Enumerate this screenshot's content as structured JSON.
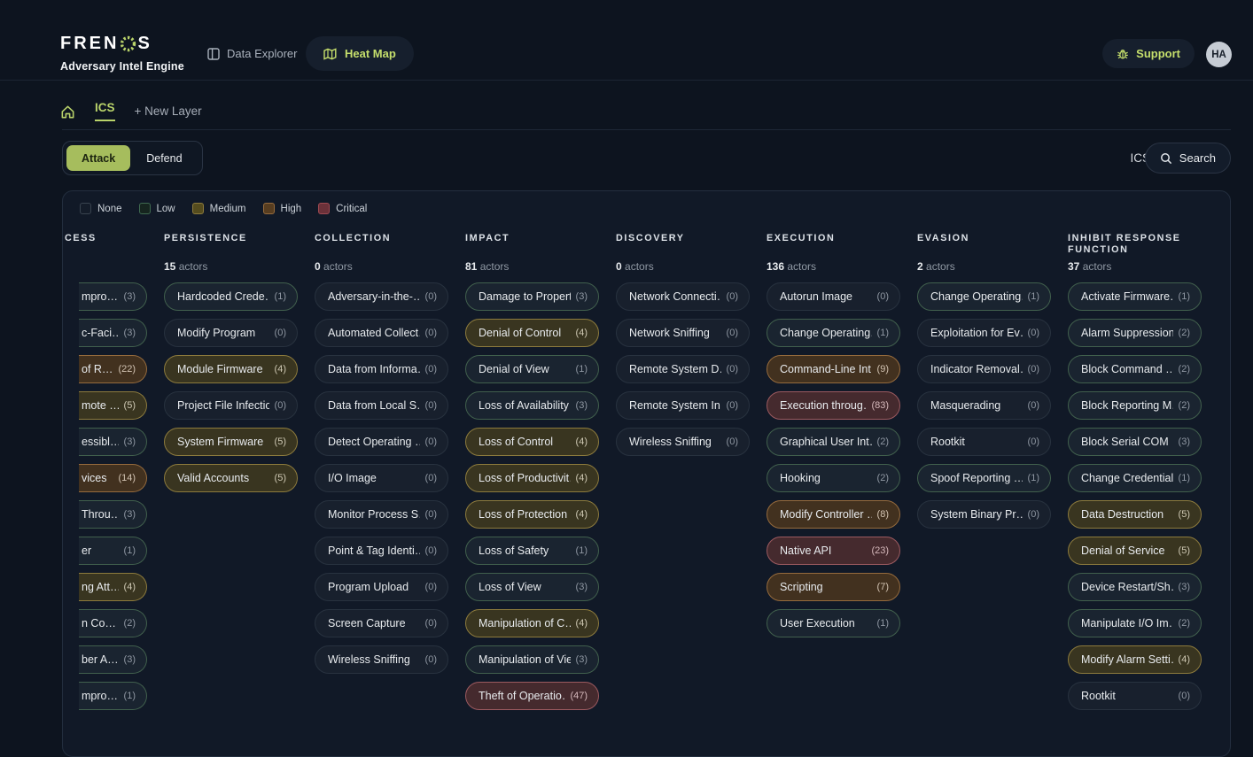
{
  "header": {
    "logo_prefix": "FREN",
    "logo_suffix": "S",
    "subtitle": "Adversary Intel Engine",
    "nav": {
      "data_explorer": "Data Explorer",
      "heat_map": "Heat Map"
    },
    "support_label": "Support",
    "avatar_initials": "HA"
  },
  "breadcrumb": {
    "current": "ICS",
    "new_layer": "+ New Layer"
  },
  "mode_toggle": {
    "attack": "Attack",
    "defend": "Defend"
  },
  "toolbar": {
    "context": "ICS",
    "search_label": "Search"
  },
  "accent": {
    "green": "#c6df6c",
    "brand": "#b9d36a",
    "attack_bg": "#a6bd5d",
    "attack_text": "#1c2410"
  },
  "severity_colors": {
    "none": {
      "bg": "#18202d",
      "border": "#28323f",
      "count": "#8f97a2"
    },
    "low": {
      "bg": "#1a2430",
      "border": "#41604d",
      "count": "#8f97a2"
    },
    "medium": {
      "bg": "#393520",
      "border": "#8d7b3d",
      "count": "#cfc9b4"
    },
    "high": {
      "bg": "#42311f",
      "border": "#966b3d",
      "count": "#d2c3b2"
    },
    "critical": {
      "bg": "#452a2e",
      "border": "#9c5a60",
      "count": "#d6b9bc"
    }
  },
  "legend": [
    {
      "label": "None",
      "level": "none",
      "swatch": {
        "bg": "#141c29",
        "border": "#39434f"
      }
    },
    {
      "label": "Low",
      "level": "low",
      "swatch": {
        "bg": "#16251f",
        "border": "#3f6a50"
      }
    },
    {
      "label": "Medium",
      "level": "medium",
      "swatch": {
        "bg": "#554c1e",
        "border": "#8d7b3d"
      }
    },
    {
      "label": "High",
      "level": "high",
      "swatch": {
        "bg": "#573d20",
        "border": "#966b3d"
      }
    },
    {
      "label": "Critical",
      "level": "critical",
      "swatch": {
        "bg": "#6b3139",
        "border": "#a04a52"
      }
    }
  ],
  "columns": [
    {
      "name": "CESS",
      "clipped": true,
      "actors_count": null,
      "actors_label": null,
      "techniques": [
        {
          "name": "mpro…",
          "count": "(3)",
          "severity": "low"
        },
        {
          "name": "c-Faci…",
          "count": "(3)",
          "severity": "low"
        },
        {
          "name": "of R…",
          "count": "(22)",
          "severity": "high"
        },
        {
          "name": "mote …",
          "count": "(5)",
          "severity": "medium"
        },
        {
          "name": "essibl…",
          "count": "(3)",
          "severity": "low"
        },
        {
          "name": "vices",
          "count": "(14)",
          "severity": "high"
        },
        {
          "name": "Throu…",
          "count": "(3)",
          "severity": "low"
        },
        {
          "name": "er",
          "count": "(1)",
          "severity": "low"
        },
        {
          "name": "ng Att…",
          "count": "(4)",
          "severity": "medium"
        },
        {
          "name": "n Co…",
          "count": "(2)",
          "severity": "low"
        },
        {
          "name": "ber A…",
          "count": "(3)",
          "severity": "low"
        },
        {
          "name": "mpro…",
          "count": "(1)",
          "severity": "low"
        }
      ]
    },
    {
      "name": "PERSISTENCE",
      "clipped": false,
      "actors_count": "15",
      "actors_label": "actors",
      "techniques": [
        {
          "name": "Hardcoded Crede…",
          "count": "(1)",
          "severity": "low"
        },
        {
          "name": "Modify Program",
          "count": "(0)",
          "severity": "none"
        },
        {
          "name": "Module Firmware",
          "count": "(4)",
          "severity": "medium"
        },
        {
          "name": "Project File Infection",
          "count": "(0)",
          "severity": "none"
        },
        {
          "name": "System Firmware",
          "count": "(5)",
          "severity": "medium"
        },
        {
          "name": "Valid Accounts",
          "count": "(5)",
          "severity": "medium"
        }
      ]
    },
    {
      "name": "COLLECTION",
      "clipped": false,
      "actors_count": "0",
      "actors_label": "actors",
      "techniques": [
        {
          "name": "Adversary-in-the-…",
          "count": "(0)",
          "severity": "none"
        },
        {
          "name": "Automated Collect…",
          "count": "(0)",
          "severity": "none"
        },
        {
          "name": "Data from Informa…",
          "count": "(0)",
          "severity": "none"
        },
        {
          "name": "Data from Local S…",
          "count": "(0)",
          "severity": "none"
        },
        {
          "name": "Detect Operating …",
          "count": "(0)",
          "severity": "none"
        },
        {
          "name": "I/O Image",
          "count": "(0)",
          "severity": "none"
        },
        {
          "name": "Monitor Process S…",
          "count": "(0)",
          "severity": "none"
        },
        {
          "name": "Point & Tag Identi…",
          "count": "(0)",
          "severity": "none"
        },
        {
          "name": "Program Upload",
          "count": "(0)",
          "severity": "none"
        },
        {
          "name": "Screen Capture",
          "count": "(0)",
          "severity": "none"
        },
        {
          "name": "Wireless Sniffing",
          "count": "(0)",
          "severity": "none"
        }
      ]
    },
    {
      "name": "IMPACT",
      "clipped": false,
      "actors_count": "81",
      "actors_label": "actors",
      "techniques": [
        {
          "name": "Damage to Property",
          "count": "(3)",
          "severity": "low"
        },
        {
          "name": "Denial of Control",
          "count": "(4)",
          "severity": "medium"
        },
        {
          "name": "Denial of View",
          "count": "(1)",
          "severity": "low"
        },
        {
          "name": "Loss of Availability",
          "count": "(3)",
          "severity": "low"
        },
        {
          "name": "Loss of Control",
          "count": "(4)",
          "severity": "medium"
        },
        {
          "name": "Loss of Productivit…",
          "count": "(4)",
          "severity": "medium"
        },
        {
          "name": "Loss of Protection",
          "count": "(4)",
          "severity": "medium"
        },
        {
          "name": "Loss of Safety",
          "count": "(1)",
          "severity": "low"
        },
        {
          "name": "Loss of View",
          "count": "(3)",
          "severity": "low"
        },
        {
          "name": "Manipulation of C…",
          "count": "(4)",
          "severity": "medium"
        },
        {
          "name": "Manipulation of View",
          "count": "(3)",
          "severity": "low"
        },
        {
          "name": "Theft of Operatio…",
          "count": "(47)",
          "severity": "critical"
        }
      ]
    },
    {
      "name": "DISCOVERY",
      "clipped": false,
      "actors_count": "0",
      "actors_label": "actors",
      "techniques": [
        {
          "name": "Network Connecti…",
          "count": "(0)",
          "severity": "none"
        },
        {
          "name": "Network Sniffing",
          "count": "(0)",
          "severity": "none"
        },
        {
          "name": "Remote System D…",
          "count": "(0)",
          "severity": "none"
        },
        {
          "name": "Remote System In…",
          "count": "(0)",
          "severity": "none"
        },
        {
          "name": "Wireless Sniffing",
          "count": "(0)",
          "severity": "none"
        }
      ]
    },
    {
      "name": "EXECUTION",
      "clipped": false,
      "actors_count": "136",
      "actors_label": "actors",
      "techniques": [
        {
          "name": "Autorun Image",
          "count": "(0)",
          "severity": "none"
        },
        {
          "name": "Change Operating…",
          "count": "(1)",
          "severity": "low"
        },
        {
          "name": "Command-Line Int…",
          "count": "(9)",
          "severity": "high"
        },
        {
          "name": "Execution throug…",
          "count": "(83)",
          "severity": "critical"
        },
        {
          "name": "Graphical User Int…",
          "count": "(2)",
          "severity": "low"
        },
        {
          "name": "Hooking",
          "count": "(2)",
          "severity": "low"
        },
        {
          "name": "Modify Controller …",
          "count": "(8)",
          "severity": "high"
        },
        {
          "name": "Native API",
          "count": "(23)",
          "severity": "critical"
        },
        {
          "name": "Scripting",
          "count": "(7)",
          "severity": "high"
        },
        {
          "name": "User Execution",
          "count": "(1)",
          "severity": "low"
        }
      ]
    },
    {
      "name": "EVASION",
      "clipped": false,
      "actors_count": "2",
      "actors_label": "actors",
      "techniques": [
        {
          "name": "Change Operating…",
          "count": "(1)",
          "severity": "low"
        },
        {
          "name": "Exploitation for Ev…",
          "count": "(0)",
          "severity": "none"
        },
        {
          "name": "Indicator Removal…",
          "count": "(0)",
          "severity": "none"
        },
        {
          "name": "Masquerading",
          "count": "(0)",
          "severity": "none"
        },
        {
          "name": "Rootkit",
          "count": "(0)",
          "severity": "none"
        },
        {
          "name": "Spoof Reporting …",
          "count": "(1)",
          "severity": "low"
        },
        {
          "name": "System Binary Pr…",
          "count": "(0)",
          "severity": "none"
        }
      ]
    },
    {
      "name": "INHIBIT RESPONSE FUNCTION",
      "clipped": false,
      "actors_count": "37",
      "actors_label": "actors",
      "techniques": [
        {
          "name": "Activate Firmware…",
          "count": "(1)",
          "severity": "low"
        },
        {
          "name": "Alarm Suppression",
          "count": "(2)",
          "severity": "low"
        },
        {
          "name": "Block Command …",
          "count": "(2)",
          "severity": "low"
        },
        {
          "name": "Block Reporting M…",
          "count": "(2)",
          "severity": "low"
        },
        {
          "name": "Block Serial COM",
          "count": "(3)",
          "severity": "low"
        },
        {
          "name": "Change Credential",
          "count": "(1)",
          "severity": "low"
        },
        {
          "name": "Data Destruction",
          "count": "(5)",
          "severity": "medium"
        },
        {
          "name": "Denial of Service",
          "count": "(5)",
          "severity": "medium"
        },
        {
          "name": "Device Restart/Sh…",
          "count": "(3)",
          "severity": "low"
        },
        {
          "name": "Manipulate I/O Im…",
          "count": "(2)",
          "severity": "low"
        },
        {
          "name": "Modify Alarm Setti…",
          "count": "(4)",
          "severity": "medium"
        },
        {
          "name": "Rootkit",
          "count": "(0)",
          "severity": "none"
        }
      ]
    }
  ]
}
